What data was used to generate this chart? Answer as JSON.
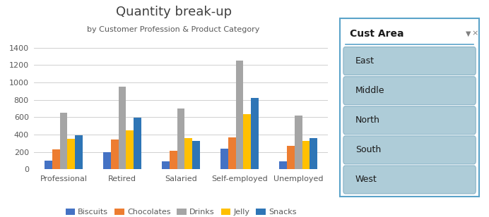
{
  "title": "Quantity break-up",
  "subtitle": "by Customer Profession & Product Category",
  "categories": [
    "Professional",
    "Retired",
    "Salaried",
    "Self-employed",
    "Unemployed"
  ],
  "series": {
    "Biscuits": [
      100,
      200,
      90,
      240,
      90
    ],
    "Chocolates": [
      230,
      340,
      210,
      370,
      270
    ],
    "Drinks": [
      650,
      950,
      700,
      1250,
      615
    ],
    "Jelly": [
      350,
      450,
      360,
      635,
      330
    ],
    "Snacks": [
      390,
      595,
      330,
      820,
      360
    ]
  },
  "bar_colors": [
    "#4472c4",
    "#ed7d31",
    "#a5a5a5",
    "#ffc000",
    "#2e75b6"
  ],
  "series_names": [
    "Biscuits",
    "Chocolates",
    "Drinks",
    "Jelly",
    "Snacks"
  ],
  "ylim": [
    0,
    1500
  ],
  "yticks": [
    0,
    200,
    400,
    600,
    800,
    1000,
    1200,
    1400
  ],
  "bg_color": "#ffffff",
  "plot_bg": "#ffffff",
  "grid_color": "#d0d0d0",
  "title_color": "#404040",
  "subtitle_color": "#595959",
  "tick_color": "#595959",
  "slicer_title": "Cust Area",
  "slicer_items": [
    "East",
    "Middle",
    "North",
    "South",
    "West"
  ],
  "slicer_item_bg": "#aeccd8",
  "slicer_item_border": "#8ab4c8",
  "slicer_outer_border": "#5ba3c9",
  "slicer_header_line": "#5ba3c9",
  "slicer_bg": "#ffffff"
}
